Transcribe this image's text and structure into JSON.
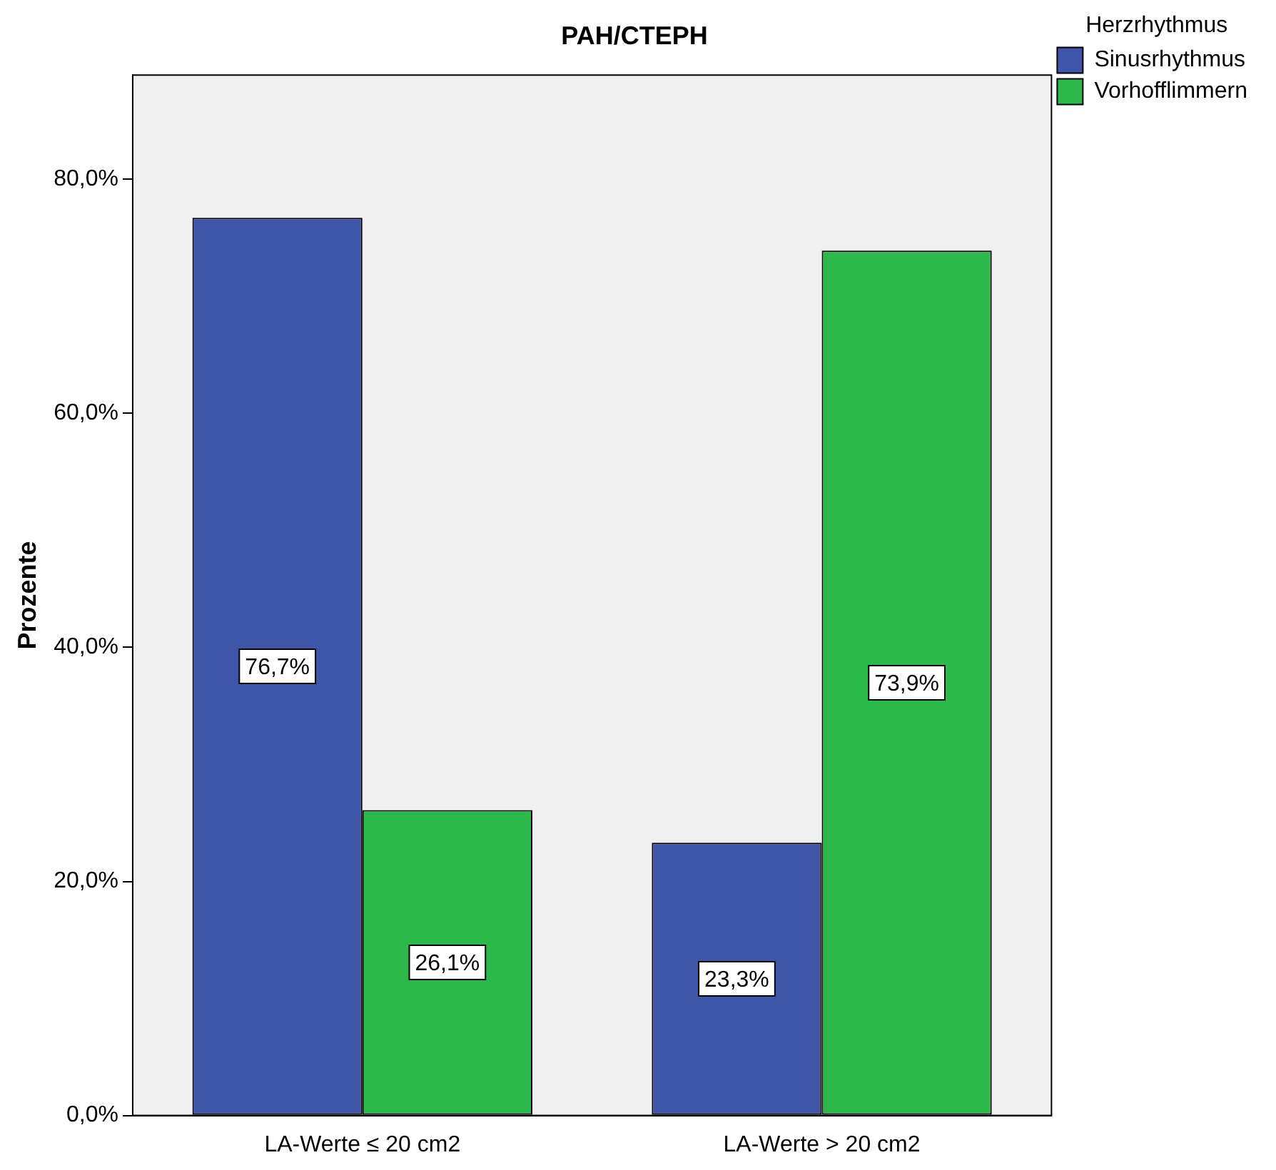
{
  "chart_data": {
    "type": "bar",
    "title": "PAH/CTEPH",
    "ylabel": "Prozente",
    "legend_title": "Herzrhythmus",
    "legend": "top right",
    "categories": [
      "LA-Werte ≤ 20 cm2",
      "LA-Werte > 20 cm2"
    ],
    "series": [
      {
        "name": "Sinusrhythmus",
        "color": "#3f55a8",
        "values": [
          76.7,
          23.3
        ],
        "value_labels": [
          "76,7%",
          "23,3%"
        ]
      },
      {
        "name": "Vorhofflimmern",
        "color": "#2db84b",
        "values": [
          26.1,
          73.9
        ],
        "value_labels": [
          "26,1%",
          "73,9%"
        ]
      }
    ],
    "ylim": [
      0,
      88.9
    ],
    "yticks": [
      {
        "value": 0,
        "label": "0,0%"
      },
      {
        "value": 20,
        "label": "20,0%"
      },
      {
        "value": 40,
        "label": "40,0%"
      },
      {
        "value": 60,
        "label": "60,0%"
      },
      {
        "value": 80,
        "label": "80,0%"
      }
    ]
  }
}
